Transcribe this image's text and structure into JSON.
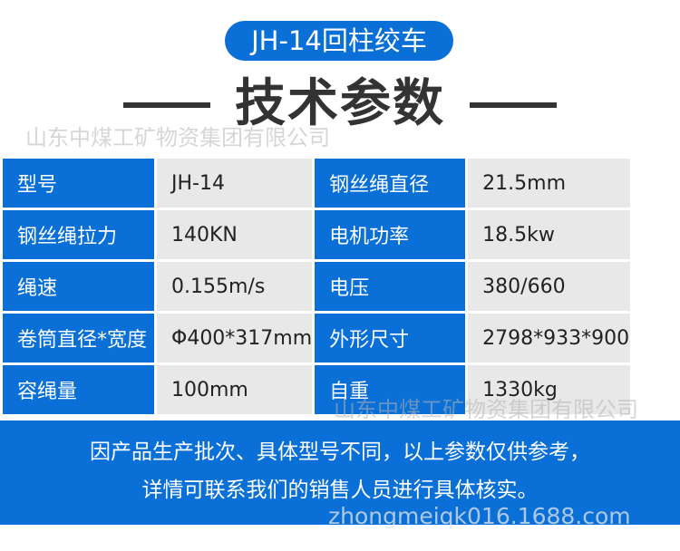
{
  "product_title": "JH-14回柱绞车",
  "section_title": "技术参数",
  "watermark": "山东中煤工矿物资集团有限公司",
  "url_watermark": "zhongmeiqk016.1688.com",
  "specs": [
    [
      {
        "k": "型号",
        "v": "JH-14"
      },
      {
        "k": "钢丝绳直径",
        "v": "21.5mm"
      }
    ],
    [
      {
        "k": "钢丝绳拉力",
        "v": "140KN"
      },
      {
        "k": "电机功率",
        "v": "18.5kw"
      }
    ],
    [
      {
        "k": "绳速",
        "v": "0.155m/s"
      },
      {
        "k": "电压",
        "v": "380/660"
      }
    ],
    [
      {
        "k": "卷筒直径*宽度",
        "v": "Φ400*317mm"
      },
      {
        "k": "外形尺寸",
        "v": "2798*933*900"
      }
    ],
    [
      {
        "k": "容绳量",
        "v": "100mm"
      },
      {
        "k": "自重",
        "v": "1330kg"
      }
    ]
  ],
  "notice": [
    "因产品生产批次、具体型号不同，以上参数仅供参考，",
    "详情可联系我们的销售人员进行具体核实。"
  ],
  "colors": {
    "accent": "#0a6fd6",
    "cell": "#e8e8e8"
  }
}
